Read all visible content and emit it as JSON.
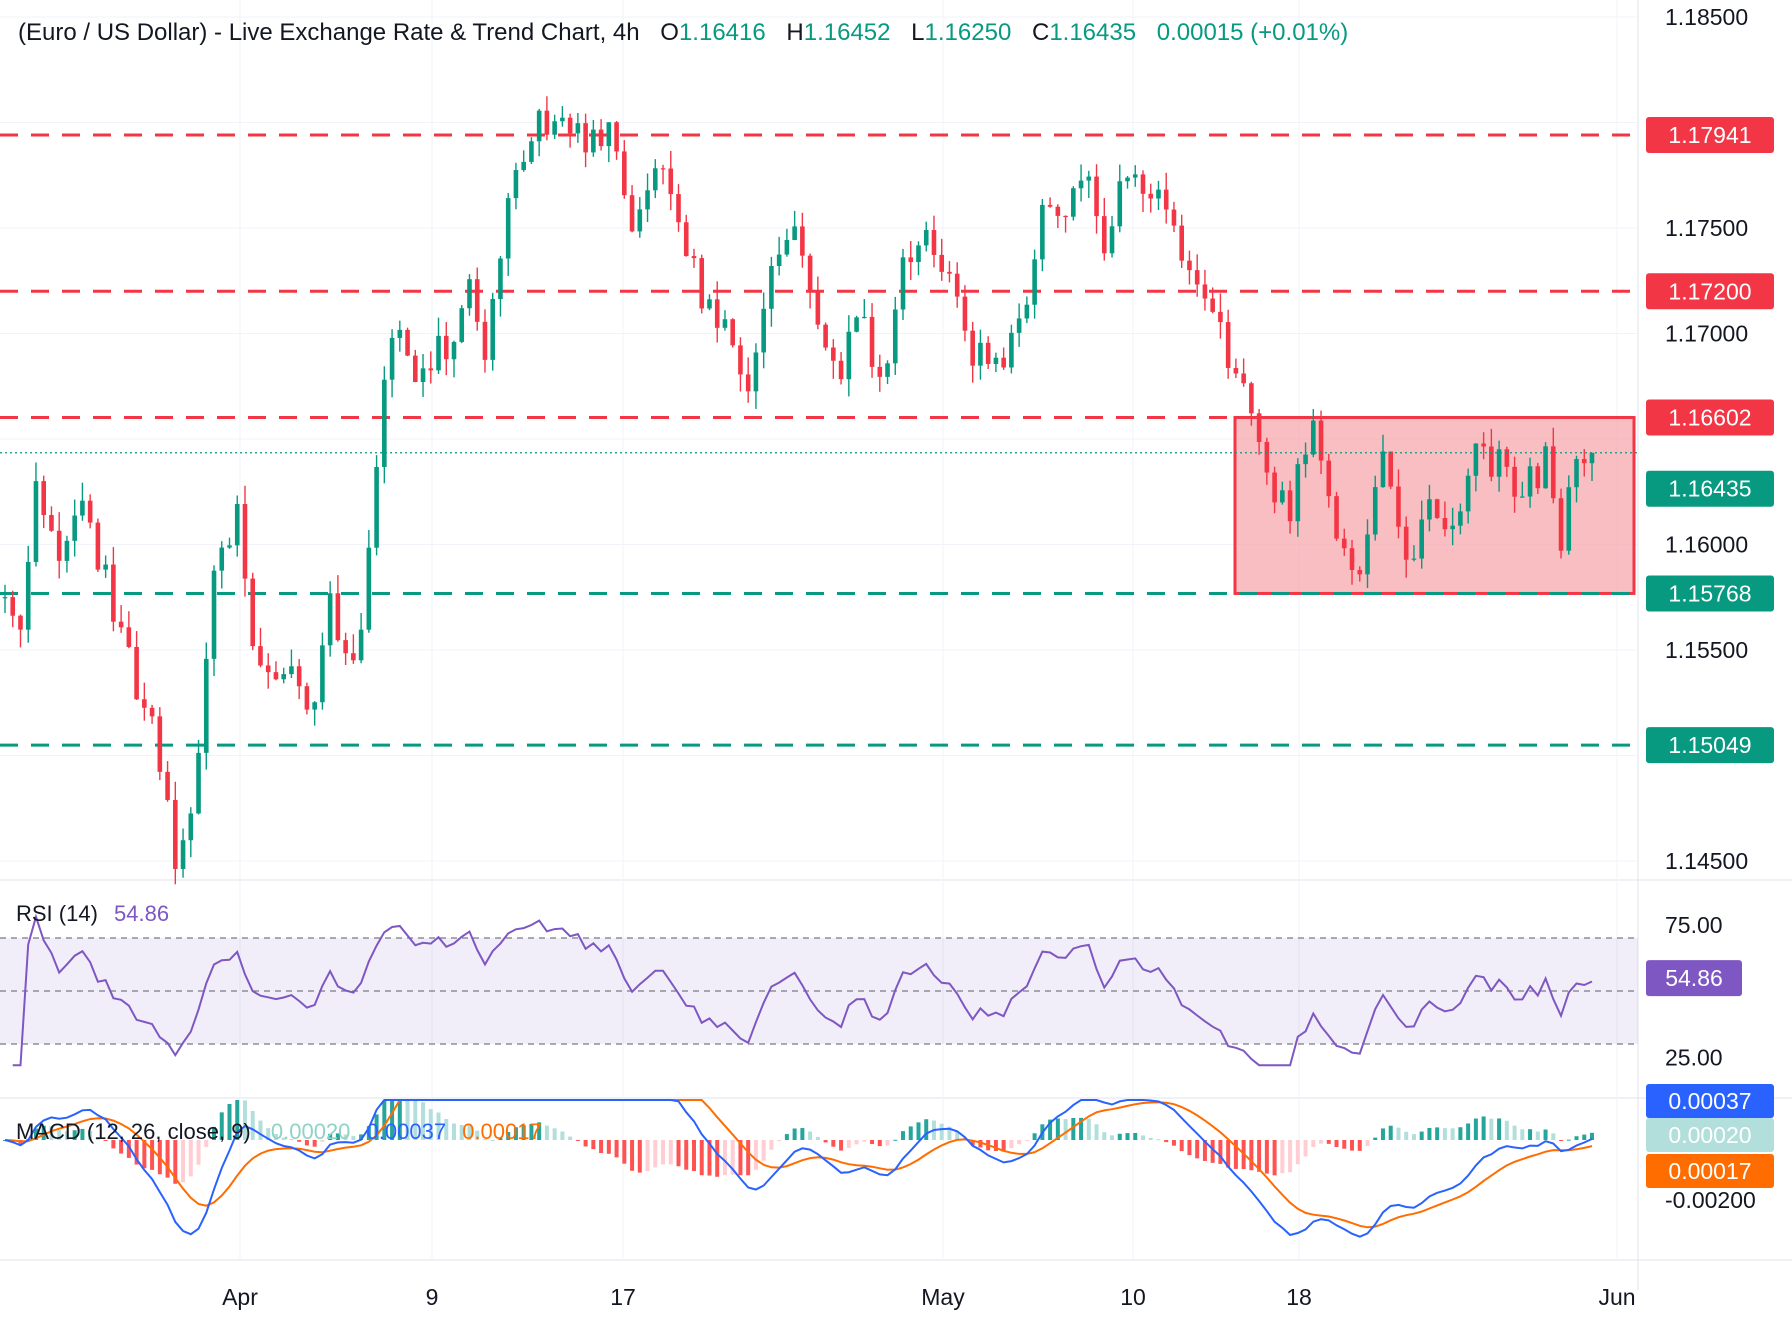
{
  "header": {
    "title": "(Euro / US Dollar) - Live Exchange Rate & Trend Chart, 4h",
    "o_label": "O",
    "o_value": "1.16416",
    "h_label": "H",
    "h_value": "1.16452",
    "l_label": "L",
    "l_value": "1.16250",
    "c_label": "C",
    "c_value": "1.16435",
    "change": "0.00015 (+0.01%)"
  },
  "colors": {
    "bull": "#089981",
    "bear": "#f23645",
    "resistance": "#f23645",
    "support": "#089981",
    "rsi": "#7e57c2",
    "macd": "#2962ff",
    "signal": "#ff6d00",
    "zone_fill": "#f7a8ad"
  },
  "chart_data": [
    {
      "type": "candlestick",
      "title": "(Euro / US Dollar) - Live Exchange Rate & Trend Chart",
      "timeframe": "4h",
      "x_ticks": [
        "Apr",
        "9",
        "17",
        "May",
        "10",
        "18",
        "Jun"
      ],
      "y_ticks": [
        "1.18500",
        "1.17500",
        "1.17000",
        "1.16000",
        "1.15500",
        "1.14500"
      ],
      "ylim": [
        1.1425,
        1.1865
      ],
      "last_price": 1.16435,
      "price_path": [
        {
          "t": 0,
          "p": 1.1575
        },
        {
          "t": 2,
          "p": 1.1555
        },
        {
          "t": 4,
          "p": 1.1625
        },
        {
          "t": 7,
          "p": 1.16
        },
        {
          "t": 10,
          "p": 1.162
        },
        {
          "t": 13,
          "p": 1.1585
        },
        {
          "t": 16,
          "p": 1.1545
        },
        {
          "t": 19,
          "p": 1.151
        },
        {
          "t": 22,
          "p": 1.145
        },
        {
          "t": 24,
          "p": 1.1475
        },
        {
          "t": 27,
          "p": 1.158
        },
        {
          "t": 30,
          "p": 1.162
        },
        {
          "t": 32,
          "p": 1.156
        },
        {
          "t": 34,
          "p": 1.1535
        },
        {
          "t": 37,
          "p": 1.154
        },
        {
          "t": 40,
          "p": 1.152
        },
        {
          "t": 42,
          "p": 1.157
        },
        {
          "t": 45,
          "p": 1.1545
        },
        {
          "t": 47,
          "p": 1.159
        },
        {
          "t": 49,
          "p": 1.168
        },
        {
          "t": 51,
          "p": 1.17
        },
        {
          "t": 53,
          "p": 1.167
        },
        {
          "t": 56,
          "p": 1.17
        },
        {
          "t": 58,
          "p": 1.169
        },
        {
          "t": 60,
          "p": 1.1725
        },
        {
          "t": 62,
          "p": 1.169
        },
        {
          "t": 65,
          "p": 1.176
        },
        {
          "t": 68,
          "p": 1.1795
        },
        {
          "t": 72,
          "p": 1.1805
        },
        {
          "t": 75,
          "p": 1.179
        },
        {
          "t": 78,
          "p": 1.1795
        },
        {
          "t": 81,
          "p": 1.1755
        },
        {
          "t": 84,
          "p": 1.1785
        },
        {
          "t": 87,
          "p": 1.1755
        },
        {
          "t": 90,
          "p": 1.172
        },
        {
          "t": 93,
          "p": 1.17
        },
        {
          "t": 96,
          "p": 1.1675
        },
        {
          "t": 99,
          "p": 1.1725
        },
        {
          "t": 102,
          "p": 1.1745
        },
        {
          "t": 105,
          "p": 1.171
        },
        {
          "t": 108,
          "p": 1.1685
        },
        {
          "t": 110,
          "p": 1.1715
        },
        {
          "t": 113,
          "p": 1.1675
        },
        {
          "t": 116,
          "p": 1.173
        },
        {
          "t": 119,
          "p": 1.1755
        },
        {
          "t": 122,
          "p": 1.172
        },
        {
          "t": 125,
          "p": 1.169
        },
        {
          "t": 128,
          "p": 1.168
        },
        {
          "t": 131,
          "p": 1.17
        },
        {
          "t": 134,
          "p": 1.1765
        },
        {
          "t": 137,
          "p": 1.1755
        },
        {
          "t": 140,
          "p": 1.1775
        },
        {
          "t": 142,
          "p": 1.173
        },
        {
          "t": 145,
          "p": 1.178
        },
        {
          "t": 148,
          "p": 1.177
        },
        {
          "t": 151,
          "p": 1.175
        },
        {
          "t": 154,
          "p": 1.172
        },
        {
          "t": 157,
          "p": 1.17
        },
        {
          "t": 160,
          "p": 1.167
        },
        {
          "t": 163,
          "p": 1.163
        },
        {
          "t": 166,
          "p": 1.162
        },
        {
          "t": 169,
          "p": 1.165
        },
        {
          "t": 172,
          "p": 1.16
        },
        {
          "t": 175,
          "p": 1.1585
        },
        {
          "t": 178,
          "p": 1.164
        },
        {
          "t": 181,
          "p": 1.159
        },
        {
          "t": 184,
          "p": 1.1615
        },
        {
          "t": 187,
          "p": 1.16
        },
        {
          "t": 190,
          "p": 1.164
        },
        {
          "t": 193,
          "p": 1.164
        },
        {
          "t": 196,
          "p": 1.1625
        },
        {
          "t": 199,
          "p": 1.164
        },
        {
          "t": 201,
          "p": 1.16
        },
        {
          "t": 203,
          "p": 1.1645
        },
        {
          "t": 205,
          "p": 1.164
        }
      ],
      "levels": [
        {
          "price": 1.17941,
          "label": "1.17941",
          "kind": "resistance"
        },
        {
          "price": 1.172,
          "label": "1.17200",
          "kind": "resistance"
        },
        {
          "price": 1.16602,
          "label": "1.16602",
          "kind": "resistance"
        },
        {
          "price": 1.15768,
          "label": "1.15768",
          "kind": "support"
        },
        {
          "price": 1.15049,
          "label": "1.15049",
          "kind": "support"
        }
      ],
      "range_zone": {
        "top": 1.16602,
        "bottom": 1.15768
      }
    },
    {
      "type": "line",
      "title": "RSI (14)",
      "value": "54.86",
      "y_ticks": [
        "75.00",
        "25.00"
      ],
      "bands": [
        30,
        50,
        70
      ],
      "ylim": [
        20,
        80
      ]
    },
    {
      "type": "bar",
      "title": "MACD (12, 26, close, 9)",
      "values_text": [
        "0.00020",
        "0.00037",
        "0.00017"
      ],
      "y_ticks": [
        "-0.00200"
      ],
      "tags": [
        "0.00037",
        "0.00020",
        "0.00017"
      ],
      "ylim": [
        -0.004,
        0.0013
      ]
    }
  ]
}
